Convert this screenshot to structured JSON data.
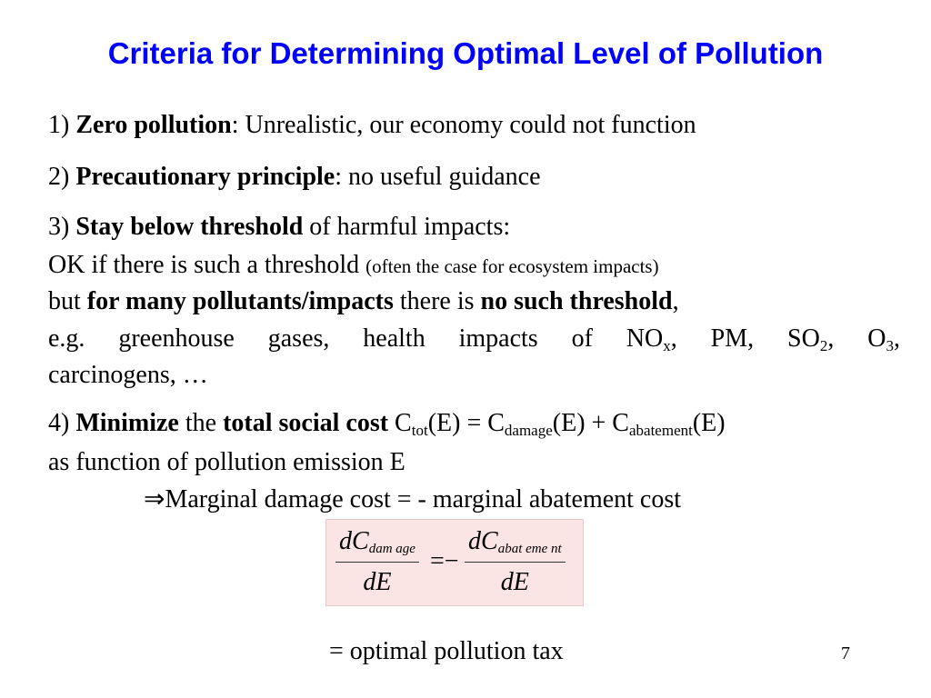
{
  "title": "Criteria for Determining Optimal Level of Pollution",
  "items": [
    {
      "num": "1) ",
      "bold": "Zero pollution",
      "rest": ": Unrealistic, our economy could  not function"
    },
    {
      "num": "2) ",
      "bold": "Precautionary principle",
      "rest": ": no useful guidance"
    },
    {
      "num": "3) ",
      "bold": "Stay below threshold",
      "rest": " of harmful impacts:"
    }
  ],
  "item3": {
    "l2a": "OK if there is such a threshold ",
    "l2b": "(often the case for ecosystem impacts)",
    "l3a": "but ",
    "l3b": "for many pollutants/impacts",
    "l3c": " there is ",
    "l3d": "no such threshold",
    "l3e": ",",
    "l4a": "e.g. greenhouse gases, health impacts of NO",
    "l4x": "x",
    "l4b": ", PM, SO",
    "l4s": "2",
    "l4c": ", O",
    "l4o": "3",
    "l4d": ",",
    "l5": "carcinogens, …"
  },
  "item4": {
    "num": "4) ",
    "b1": "Minimize",
    "t1": " the ",
    "b2": "total social cost",
    "t2": " C",
    "s1": "tot",
    "t3": "(E) = C",
    "s2": "damage",
    "t4": "(E) + C",
    "s3": "abatement",
    "t5": "(E)",
    "l2": "as function of pollution emission E",
    "l3": "⇒Marginal damage cost = - marginal abatement cost"
  },
  "formula": {
    "left_num": "dC",
    "left_sub": "dam age",
    "den": "dE",
    "eq": "=−",
    "right_num": "dC",
    "right_sub": "abat eme nt"
  },
  "tax": "= optimal pollution tax",
  "page_number": "7"
}
